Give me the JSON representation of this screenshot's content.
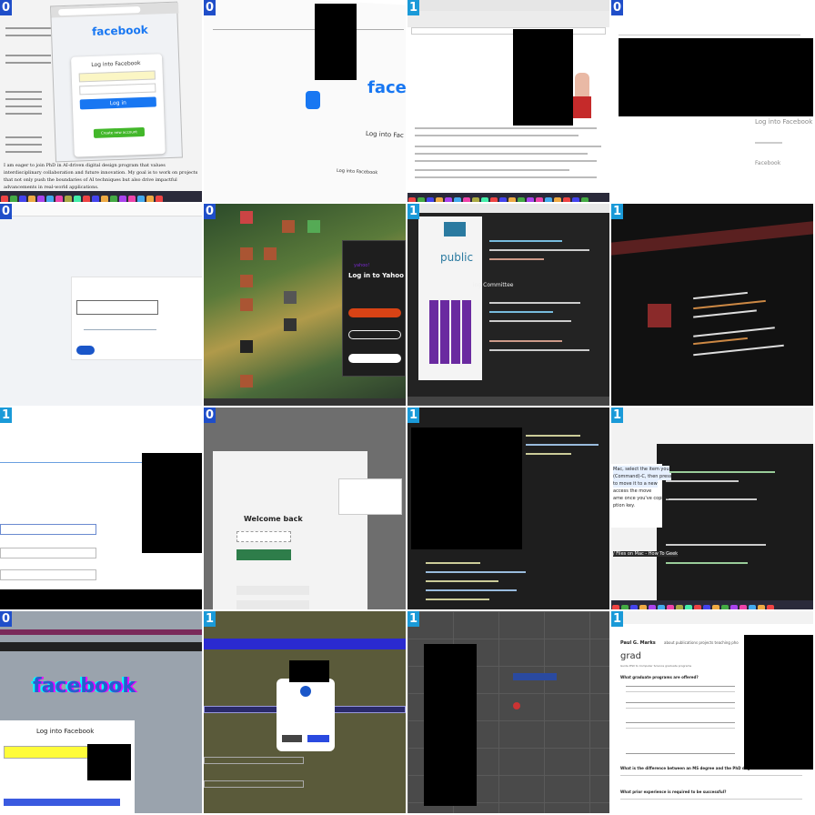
{
  "tiles": [
    {
      "label": "0",
      "texts": {
        "brand": "facebook",
        "heading": "Log into Facebook",
        "login": "Log in",
        "create": "Create new account",
        "para": "I am eager to join PhD in AI-driven digital design program that values interdisciplinary collaboration and future innovation. My goal is to work on projects that not only push the boundaries of AI techniques but also drive impactful advancements in real-world applications."
      }
    },
    {
      "label": "0",
      "texts": {
        "brand": "faceboo",
        "heading": "Log into Fac",
        "footer": "Log into Facebook"
      }
    },
    {
      "label": "1",
      "texts": {}
    },
    {
      "label": "0",
      "texts": {
        "heading": "Log into Facebook",
        "footer": "Facebook"
      }
    },
    {
      "label": "0",
      "texts": {}
    },
    {
      "label": "0",
      "texts": {
        "heading": "Log in to Yahoo Mail"
      }
    },
    {
      "label": "1",
      "texts": {
        "word": "public",
        "sidebar": "ing Committee"
      }
    },
    {
      "label": "1",
      "texts": {}
    },
    {
      "label": "1",
      "texts": {}
    },
    {
      "label": "0",
      "texts": {
        "heading": "Welcome back"
      }
    },
    {
      "label": "1",
      "texts": {}
    },
    {
      "label": "1",
      "texts": {
        "note1": "Mac, select the item you",
        "note2": "(Command)-C, then press",
        "note3": "to move it to a new",
        "note4": "access the move",
        "note5": "ame once you've copied",
        "note6": "ption key.",
        "footer": "/ Files on Mac - How To Geek"
      }
    },
    {
      "label": "0",
      "texts": {
        "brand": "facebook",
        "heading": "Log into Facebook"
      }
    },
    {
      "label": "1",
      "texts": {}
    },
    {
      "label": "1",
      "texts": {}
    },
    {
      "label": "1",
      "texts": {
        "nav": "about    publications    projects    teaching    pho",
        "brand": "Paul G. Marks",
        "heading": "grad",
        "sub": "Guide PhD to Computer Science graduate programs",
        "q1": "What graduate programs are offered?",
        "q2": "What is the difference between an MS degree and the PhD degree?",
        "q3": "What prior experience is required to be successful?"
      }
    }
  ]
}
